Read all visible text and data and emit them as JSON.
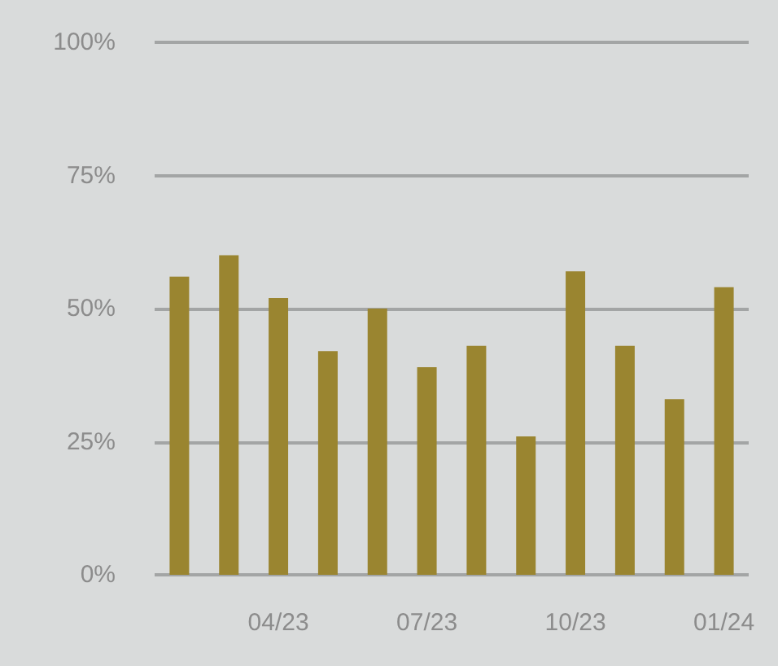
{
  "chart_data": {
    "type": "bar",
    "categories": [
      null,
      null,
      "04/23",
      null,
      null,
      "07/23",
      null,
      null,
      "10/23",
      null,
      null,
      "01/24"
    ],
    "values": [
      56,
      60,
      52,
      42,
      50,
      39,
      43,
      26,
      57,
      43,
      33,
      54
    ],
    "color": "#9a8530",
    "ylim": [
      0,
      100
    ],
    "yticks": [
      {
        "value": 0,
        "label": "0%"
      },
      {
        "value": 25,
        "label": "25%"
      },
      {
        "value": 50,
        "label": "50%"
      },
      {
        "value": 75,
        "label": "75%"
      },
      {
        "value": 100,
        "label": "100%"
      }
    ],
    "grid": "y"
  }
}
